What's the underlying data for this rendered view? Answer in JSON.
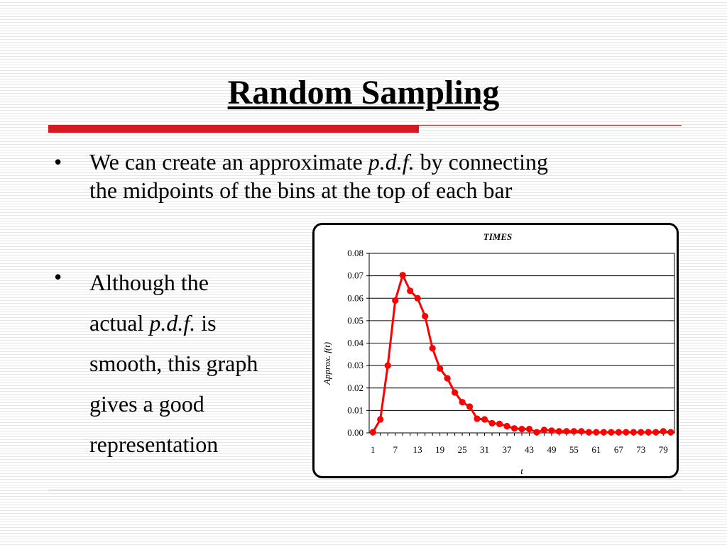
{
  "slide": {
    "title": "Random Sampling",
    "bullets": [
      {
        "symbol": "•",
        "text_before": "We can create an approximate ",
        "emphasis": "p.d.f.",
        "text_after": " by connecting",
        "line2": "the midpoints of the bins at the top of each bar"
      },
      {
        "symbol": "•",
        "line1": "Although the",
        "line2_before": "actual ",
        "line2_emphasis": "p.d.f.",
        "line2_after": " is",
        "line3": "smooth, this graph",
        "line4": "gives a good",
        "line5": "representation"
      }
    ]
  },
  "colors": {
    "accent": "#d71920",
    "series": "#ff0000"
  },
  "chart_data": {
    "type": "line",
    "title": "TIMES",
    "xlabel": "t",
    "ylabel": "Approx. f(t)",
    "ylim": [
      0,
      0.08
    ],
    "yticks": [
      "0.00",
      "0.01",
      "0.02",
      "0.03",
      "0.04",
      "0.05",
      "0.06",
      "0.07",
      "0.08"
    ],
    "x_tick_labels": [
      "1",
      "7",
      "13",
      "19",
      "25",
      "31",
      "37",
      "43",
      "49",
      "55",
      "61",
      "67",
      "73",
      "79"
    ],
    "grid": "horizontal",
    "legend": "none",
    "x": [
      1,
      3,
      5,
      7,
      9,
      11,
      13,
      15,
      17,
      19,
      21,
      23,
      25,
      27,
      29,
      31,
      33,
      35,
      37,
      39,
      41,
      43,
      45,
      47,
      49,
      51,
      53,
      55,
      57,
      59,
      61,
      63,
      65,
      67,
      69,
      71,
      73,
      75,
      77,
      79,
      81
    ],
    "series": [
      {
        "values": [
          0.0003,
          0.006,
          0.03,
          0.059,
          0.0703,
          0.0633,
          0.06,
          0.052,
          0.0377,
          0.0287,
          0.0243,
          0.018,
          0.0137,
          0.0117,
          0.0063,
          0.006,
          0.0043,
          0.004,
          0.003,
          0.002,
          0.0017,
          0.0017,
          0.0003,
          0.0013,
          0.001,
          0.0007,
          0.0007,
          0.0007,
          0.0007,
          0.0003,
          0.0003,
          0.0003,
          0.0003,
          0.0003,
          0.0003,
          0.0003,
          0.0003,
          0.0003,
          0.0003,
          0.0007,
          0.0003
        ]
      }
    ]
  }
}
